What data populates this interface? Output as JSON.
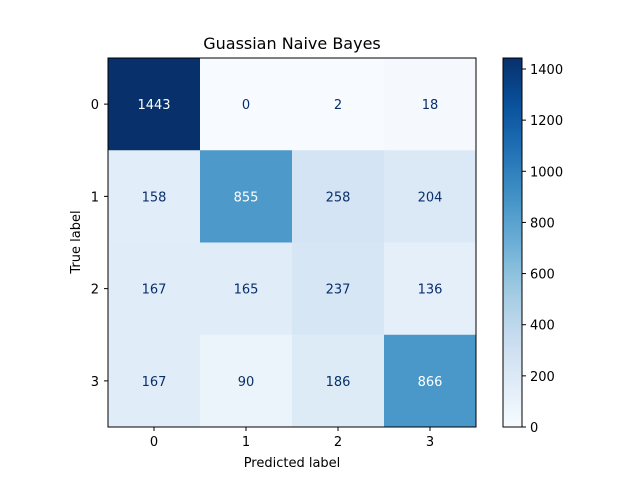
{
  "chart_data": {
    "type": "heatmap",
    "title": "Guassian Naive Bayes",
    "xlabel": "Predicted label",
    "ylabel": "True label",
    "x_categories": [
      "0",
      "1",
      "2",
      "3"
    ],
    "y_categories": [
      "0",
      "1",
      "2",
      "3"
    ],
    "values": [
      [
        1443,
        0,
        2,
        18
      ],
      [
        158,
        855,
        258,
        204
      ],
      [
        167,
        165,
        237,
        136
      ],
      [
        167,
        90,
        186,
        866
      ]
    ],
    "colormap": "Blues",
    "color_range": [
      0,
      1443
    ],
    "colorbar": {
      "ticks": [
        0,
        200,
        400,
        600,
        800,
        1000,
        1200,
        1400
      ],
      "tick_labels": [
        "0",
        "200",
        "400",
        "600",
        "800",
        "1000",
        "1200",
        "1400"
      ]
    },
    "text_color_dark": "#08306b",
    "text_color_light": "#ffffff",
    "grid": false,
    "legend": "colorbar-right"
  }
}
